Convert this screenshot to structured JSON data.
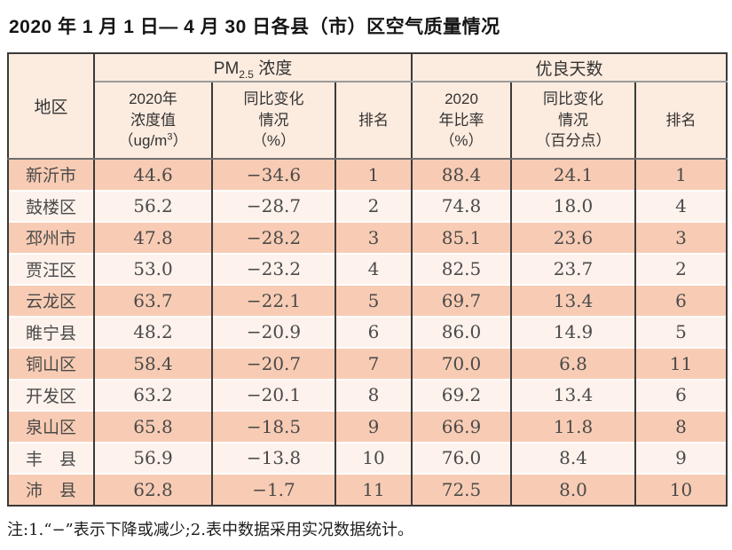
{
  "page": {
    "title": "2020 年 1 月 1 日— 4 月 30 日各县（市）区空气质量情况",
    "note": "注:1.“−”表示下降或减少;2.表中数据采用实况数据统计。"
  },
  "colors": {
    "row_salmon": "#f8ccb4",
    "row_light": "#fdf2ec",
    "header_peach": "#fcebdf",
    "border_dark": "#3a3a3a",
    "border_gray": "#6f6f6f"
  },
  "table": {
    "region_header": "地区",
    "group_pm": {
      "prefix": "PM",
      "sub": "2.5",
      "suffix": " 浓度"
    },
    "group_good": "优良天数",
    "subheaders": [
      {
        "lines": [
          "2020年",
          "浓度值"
        ],
        "unit_pre": "（ug/m",
        "unit_sup": "3",
        "unit_post": "）"
      },
      {
        "lines": [
          "同比变化",
          "情况",
          "（%）"
        ]
      },
      {
        "lines": [
          "排名"
        ]
      },
      {
        "lines": [
          "2020",
          "年比率",
          "（%）"
        ]
      },
      {
        "lines": [
          "同比变化",
          "情况",
          "（百分点）"
        ]
      },
      {
        "lines": [
          "排名"
        ]
      }
    ],
    "rows": [
      {
        "region": "新沂市",
        "pm": "44.6",
        "pm_change": "−34.6",
        "pm_rank": "1",
        "good": "88.4",
        "good_change": "24.1",
        "good_rank": "1"
      },
      {
        "region": "鼓楼区",
        "pm": "56.2",
        "pm_change": "−28.7",
        "pm_rank": "2",
        "good": "74.8",
        "good_change": "18.0",
        "good_rank": "4"
      },
      {
        "region": "邳州市",
        "pm": "47.8",
        "pm_change": "−28.2",
        "pm_rank": "3",
        "good": "85.1",
        "good_change": "23.6",
        "good_rank": "3"
      },
      {
        "region": "贾汪区",
        "pm": "53.0",
        "pm_change": "−23.2",
        "pm_rank": "4",
        "good": "82.5",
        "good_change": "23.7",
        "good_rank": "2"
      },
      {
        "region": "云龙区",
        "pm": "63.7",
        "pm_change": "−22.1",
        "pm_rank": "5",
        "good": "69.7",
        "good_change": "13.4",
        "good_rank": "6"
      },
      {
        "region": "睢宁县",
        "pm": "48.2",
        "pm_change": "−20.9",
        "pm_rank": "6",
        "good": "86.0",
        "good_change": "14.9",
        "good_rank": "5"
      },
      {
        "region": "铜山区",
        "pm": "58.4",
        "pm_change": "−20.7",
        "pm_rank": "7",
        "good": "70.0",
        "good_change": "6.8",
        "good_rank": "11"
      },
      {
        "region": "开发区",
        "pm": "63.2",
        "pm_change": "−20.1",
        "pm_rank": "8",
        "good": "69.2",
        "good_change": "13.4",
        "good_rank": "6"
      },
      {
        "region": "泉山区",
        "pm": "65.8",
        "pm_change": "−18.5",
        "pm_rank": "9",
        "good": "66.9",
        "good_change": "11.8",
        "good_rank": "8"
      },
      {
        "region": "丰　县",
        "pm": "56.9",
        "pm_change": "−13.8",
        "pm_rank": "10",
        "good": "76.0",
        "good_change": "8.4",
        "good_rank": "9"
      },
      {
        "region": "沛　县",
        "pm": "62.8",
        "pm_change": "−1.7",
        "pm_rank": "11",
        "good": "72.5",
        "good_change": "8.0",
        "good_rank": "10"
      }
    ]
  }
}
